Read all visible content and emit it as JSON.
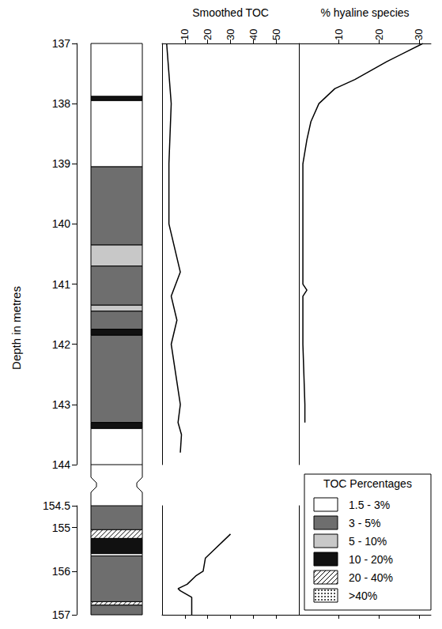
{
  "chart_data": {
    "type": "well_log",
    "y_label": "Depth in metres",
    "segments": [
      {
        "ylim": [
          137,
          144
        ],
        "yticks": [
          137,
          138,
          139,
          140,
          141,
          142,
          143,
          144
        ]
      },
      {
        "ylim": [
          154.5,
          157
        ],
        "yticks": [
          154.5,
          155,
          156,
          157
        ]
      }
    ],
    "legend": "lower right",
    "lithology": {
      "title": "TOC Percentages",
      "classes": [
        {
          "label": "1.5 - 3%",
          "color": "#ffffff"
        },
        {
          "label": "3 - 5%",
          "color": "#6e6e6e"
        },
        {
          "label": "5 - 10%",
          "color": "#c8c8c8"
        },
        {
          "label": "10 - 20%",
          "color": "#111111"
        },
        {
          "label": "20 - 40%",
          "color": "#ffffff",
          "line_style": "hatched"
        },
        {
          "label": ">40%",
          "color": "#ffffff",
          "marker": "dots"
        }
      ],
      "intervals": [
        {
          "top": 137,
          "base": 137.88,
          "class": "1.5 - 3%"
        },
        {
          "top": 137.88,
          "base": 137.95,
          "class": "10 - 20%"
        },
        {
          "top": 137.95,
          "base": 139.05,
          "class": "1.5 - 3%"
        },
        {
          "top": 139.05,
          "base": 140.35,
          "class": "3 - 5%"
        },
        {
          "top": 140.35,
          "base": 140.7,
          "class": "5 - 10%"
        },
        {
          "top": 140.7,
          "base": 141.35,
          "class": "3 - 5%"
        },
        {
          "top": 141.35,
          "base": 141.45,
          "class": "5 - 10%"
        },
        {
          "top": 141.45,
          "base": 141.75,
          "class": "3 - 5%"
        },
        {
          "top": 141.75,
          "base": 141.85,
          "class": "10 - 20%"
        },
        {
          "top": 141.85,
          "base": 143.3,
          "class": "3 - 5%"
        },
        {
          "top": 143.3,
          "base": 143.4,
          "class": "10 - 20%"
        },
        {
          "top": 143.4,
          "base": 144,
          "class": "1.5 - 3%"
        },
        {
          "top": 154.5,
          "base": 155.05,
          "class": "3 - 5%"
        },
        {
          "top": 155.05,
          "base": 155.25,
          "class": "20 - 40%"
        },
        {
          "top": 155.25,
          "base": 155.6,
          "class": "10 - 20%"
        },
        {
          "top": 155.6,
          "base": 155.65,
          "class": "1.5 - 3%"
        },
        {
          "top": 155.65,
          "base": 156.7,
          "class": "3 - 5%"
        },
        {
          "top": 156.7,
          "base": 156.78,
          "class": "20 - 40%"
        },
        {
          "top": 156.78,
          "base": 157,
          "class": "3 - 5%"
        }
      ]
    },
    "series": [
      {
        "name": "Smoothed TOC",
        "type": "line",
        "color": "#000000",
        "line_style": "solid",
        "xlim": [
          0,
          60
        ],
        "xticks": [
          10,
          20,
          30,
          40,
          50
        ],
        "segments": [
          {
            "depth": [
              137,
              138,
              139,
              140,
              140.8,
              141.2,
              141.6,
              142,
              142.5,
              143,
              143.3,
              143.5,
              143.8
            ],
            "values": [
              2,
              4,
              3,
              3,
              8,
              4,
              6.5,
              4,
              6,
              8,
              7,
              8.5,
              8
            ]
          },
          {
            "depth": [
              155.15,
              155.55,
              155.7,
              156,
              156.1,
              156.3,
              156.4,
              156.45,
              156.6,
              157
            ],
            "values": [
              30,
              22,
              19,
              18,
              15,
              11,
              7,
              8,
              13,
              13
            ]
          }
        ]
      },
      {
        "name": "% hyaline species",
        "type": "line",
        "color": "#000000",
        "line_style": "solid",
        "xlim": [
          0,
          33
        ],
        "xticks": [
          10,
          20,
          30
        ],
        "segments": [
          {
            "depth": [
              137,
              137.3,
              137.6,
              137.75,
              138,
              138.3,
              138.6,
              139,
              140,
              141,
              141.1,
              141.2,
              142,
              143,
              143.3
            ],
            "values": [
              31,
              22,
              14,
              9,
              5,
              3,
              2,
              1,
              1,
              1,
              2,
              1,
              1,
              1.5,
              1.5
            ]
          }
        ]
      }
    ]
  }
}
